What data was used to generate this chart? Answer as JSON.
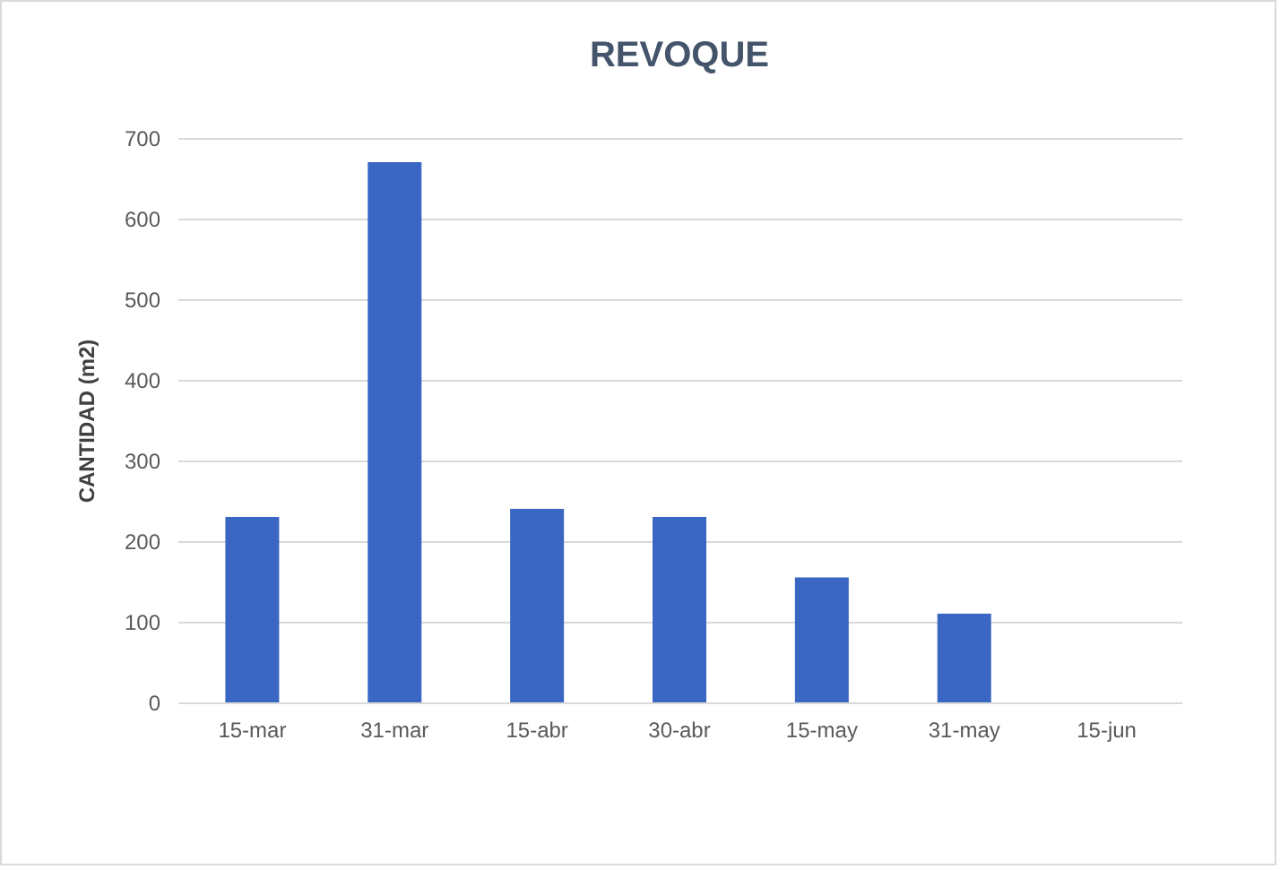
{
  "chart_data": {
    "type": "bar",
    "title": "REVOQUE",
    "ylabel": "CANTIDAD (m2)",
    "categories": [
      "15-mar",
      "31-mar",
      "15-abr",
      "30-abr",
      "15-may",
      "31-may",
      "15-jun"
    ],
    "values": [
      230,
      670,
      240,
      230,
      155,
      110,
      null
    ],
    "color": "#3a66c4",
    "ylim": [
      0,
      700
    ],
    "yticks": [
      0,
      100,
      200,
      300,
      400,
      500,
      600,
      700
    ],
    "grid": "y"
  }
}
